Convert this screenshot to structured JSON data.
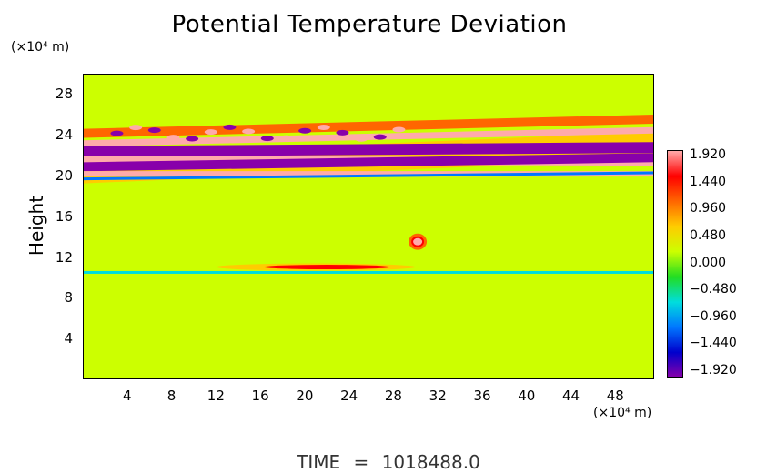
{
  "chart_data": {
    "type": "heatmap",
    "title": "Potential Temperature Deviation",
    "ylabel": "Height",
    "y_unit": "(×10⁴ m)",
    "x_unit": "(×10⁴ m)",
    "xlim": [
      0,
      51.5
    ],
    "ylim": [
      0,
      30
    ],
    "x_ticks": [
      4,
      8,
      12,
      16,
      20,
      24,
      28,
      32,
      36,
      40,
      44,
      48
    ],
    "y_ticks": [
      4,
      8,
      12,
      16,
      20,
      24,
      28
    ],
    "colorbar": {
      "ticks": [
        "1.920",
        "1.440",
        "0.960",
        "0.480",
        "0.000",
        "−0.480",
        "−0.960",
        "−1.440",
        "−1.920"
      ],
      "range": [
        -1.92,
        1.92
      ],
      "colors": [
        "#8800aa",
        "#0000cc",
        "#0077ff",
        "#00dddd",
        "#22dd22",
        "#ccff00",
        "#ffcc00",
        "#ff6600",
        "#ff0000",
        "#ffaaaa"
      ]
    },
    "background_value": 0.0,
    "features": [
      {
        "name": "upper wave band",
        "x_range": [
          0,
          51.5
        ],
        "y_range": [
          19.5,
          24.5
        ],
        "max": 1.92,
        "min": -1.92
      },
      {
        "name": "lower shear layer",
        "x_range": [
          0,
          51.5
        ],
        "y_range": [
          10,
          11.5
        ],
        "max": 1.2,
        "min": -0.6
      },
      {
        "name": "eddy",
        "x": 30.2,
        "y": 13.5,
        "value": 1.92
      }
    ]
  },
  "footer": {
    "time_label": "TIME",
    "equals": "=",
    "time_value": "1018488.0"
  }
}
